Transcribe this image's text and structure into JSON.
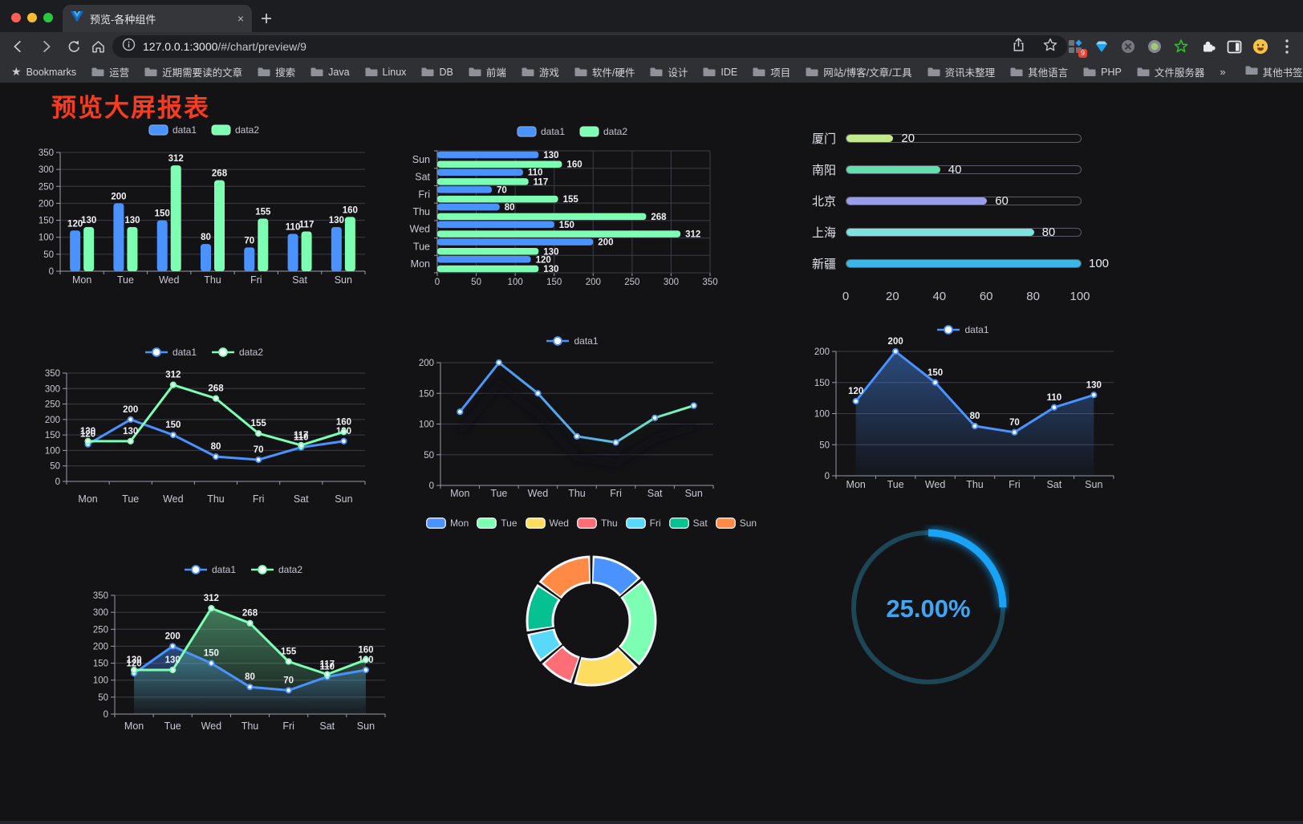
{
  "browser": {
    "tab": {
      "title": "预览-各种组件",
      "close_glyph": "×",
      "new_tab_glyph": "+"
    },
    "toolbar": {
      "url_host": "127.0.0.1:3000",
      "url_path": "/#/chart/preview/9",
      "extension_badge": "9"
    },
    "bookmarks": {
      "label": "Bookmarks",
      "items": [
        "运营",
        "近期需要读的文章",
        "搜索",
        "Java",
        "Linux",
        "DB",
        "前端",
        "游戏",
        "软件/硬件",
        "设计",
        "IDE",
        "项目",
        "网站/博客/文章/工具",
        "资讯未整理",
        "其他语言",
        "PHP",
        "文件服务器"
      ],
      "overflow_glyph": "»",
      "other_label": "其他书签"
    }
  },
  "page": {
    "title": "预览大屏报表",
    "title_color": "#fb3a1e",
    "background": "#131316"
  },
  "palette": {
    "data1": "#4992ff",
    "data2": "#7cffb2"
  },
  "chart_data": [
    {
      "id": "grouped-bar",
      "type": "bar",
      "categories": [
        "Mon",
        "Tue",
        "Wed",
        "Thu",
        "Fri",
        "Sat",
        "Sun"
      ],
      "series": [
        {
          "name": "data1",
          "color": "#4992ff",
          "values": [
            120,
            200,
            150,
            80,
            70,
            110,
            130
          ]
        },
        {
          "name": "data2",
          "color": "#7cffb2",
          "values": [
            130,
            130,
            312,
            268,
            155,
            117,
            160
          ]
        }
      ],
      "ylim": [
        0,
        350
      ],
      "yticks": [
        0,
        50,
        100,
        150,
        200,
        250,
        300,
        350
      ],
      "grid": true,
      "legend_position": "top"
    },
    {
      "id": "grouped-hbar",
      "type": "bar-horizontal",
      "categories": [
        "Mon",
        "Tue",
        "Wed",
        "Thu",
        "Fri",
        "Sat",
        "Sun"
      ],
      "display_order_top_to_bottom": [
        "Sun",
        "Sat",
        "Fri",
        "Thu",
        "Wed",
        "Tue",
        "Mon"
      ],
      "series": [
        {
          "name": "data1",
          "color": "#4992ff",
          "values": [
            120,
            200,
            150,
            80,
            70,
            110,
            130
          ]
        },
        {
          "name": "data2",
          "color": "#7cffb2",
          "values": [
            130,
            130,
            312,
            268,
            155,
            117,
            160
          ]
        }
      ],
      "xlim": [
        0,
        350
      ],
      "xticks": [
        0,
        50,
        100,
        150,
        200,
        250,
        300,
        350
      ],
      "grid": true,
      "legend_position": "top"
    },
    {
      "id": "city-progress",
      "type": "progress-bars",
      "max": 100,
      "xticks": [
        0,
        20,
        40,
        60,
        80,
        100
      ],
      "rows": [
        {
          "label": "厦门",
          "value": 20,
          "color": "#c3e88d"
        },
        {
          "label": "南阳",
          "value": 40,
          "color": "#5fe0ae"
        },
        {
          "label": "北京",
          "value": 60,
          "color": "#989fe8"
        },
        {
          "label": "上海",
          "value": 80,
          "color": "#7ce3de"
        },
        {
          "label": "新疆",
          "value": 100,
          "color": "#3cb5e8"
        }
      ]
    },
    {
      "id": "line-duo",
      "type": "line",
      "categories": [
        "Mon",
        "Tue",
        "Wed",
        "Thu",
        "Fri",
        "Sat",
        "Sun"
      ],
      "series": [
        {
          "name": "data1",
          "color": "#4992ff",
          "values": [
            120,
            200,
            150,
            80,
            70,
            110,
            130
          ]
        },
        {
          "name": "data2",
          "color": "#7cffb2",
          "values": [
            130,
            130,
            312,
            268,
            155,
            117,
            160
          ]
        }
      ],
      "ylim": [
        0,
        350
      ],
      "yticks": [
        0,
        50,
        100,
        150,
        200,
        250,
        300,
        350
      ],
      "grid": true,
      "legend_position": "top"
    },
    {
      "id": "gradient-line",
      "type": "line",
      "categories": [
        "Mon",
        "Tue",
        "Wed",
        "Thu",
        "Fri",
        "Sat",
        "Sun"
      ],
      "series": [
        {
          "name": "data1",
          "gradient": [
            "#4992ff",
            "#7cffb2"
          ],
          "values": [
            120,
            200,
            150,
            80,
            70,
            110,
            130
          ],
          "labels": false,
          "shadow": true
        }
      ],
      "ylim": [
        0,
        200
      ],
      "yticks": [
        0,
        50,
        100,
        150,
        200
      ],
      "grid": true,
      "legend_position": "top"
    },
    {
      "id": "area-single",
      "type": "area",
      "categories": [
        "Mon",
        "Tue",
        "Wed",
        "Thu",
        "Fri",
        "Sat",
        "Sun"
      ],
      "series": [
        {
          "name": "data1",
          "color": "#4992ff",
          "area": true,
          "values": [
            120,
            200,
            150,
            80,
            70,
            110,
            130
          ],
          "labels": true
        }
      ],
      "ylim": [
        0,
        200
      ],
      "yticks": [
        0,
        50,
        100,
        150,
        200
      ],
      "grid": true,
      "legend_position": "top"
    },
    {
      "id": "area-duo",
      "type": "area",
      "categories": [
        "Mon",
        "Tue",
        "Wed",
        "Thu",
        "Fri",
        "Sat",
        "Sun"
      ],
      "series": [
        {
          "name": "data1",
          "color": "#4992ff",
          "area": true,
          "values": [
            120,
            200,
            150,
            80,
            70,
            110,
            130
          ],
          "labels": true
        },
        {
          "name": "data2",
          "color": "#7cffb2",
          "area": true,
          "values": [
            130,
            130,
            312,
            268,
            155,
            117,
            160
          ],
          "labels": true
        }
      ],
      "ylim": [
        0,
        350
      ],
      "yticks": [
        0,
        50,
        100,
        150,
        200,
        250,
        300,
        350
      ],
      "grid": true,
      "legend_position": "top"
    },
    {
      "id": "donut",
      "type": "donut",
      "items": [
        {
          "name": "Mon",
          "value": 120,
          "color": "#4992ff"
        },
        {
          "name": "Tue",
          "value": 200,
          "color": "#7cffb2"
        },
        {
          "name": "Wed",
          "value": 150,
          "color": "#fddd60"
        },
        {
          "name": "Thu",
          "value": 80,
          "color": "#ff6e76"
        },
        {
          "name": "Fri",
          "value": 70,
          "color": "#58d9f9"
        },
        {
          "name": "Sat",
          "value": 110,
          "color": "#05c091"
        },
        {
          "name": "Sun",
          "value": 130,
          "color": "#ff8a45"
        }
      ],
      "legend_position": "top"
    },
    {
      "id": "gauge",
      "type": "gauge",
      "value": 25,
      "label": "25.00%",
      "color": "#19a3f6",
      "track_color": "#1d4756",
      "text_color": "#41a6f0"
    }
  ]
}
